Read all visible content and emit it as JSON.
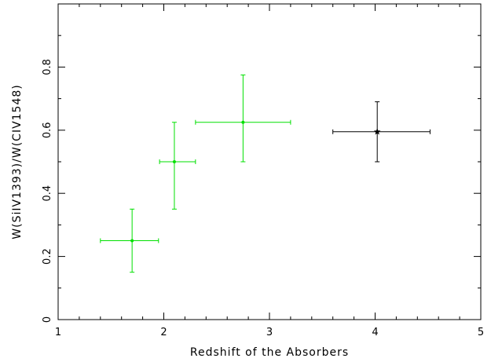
{
  "chart_data": {
    "type": "scatter",
    "xlabel": "Redshift of the Absorbers",
    "ylabel": "W(SiIV1393)/W(CIV1548)",
    "xlim": [
      1,
      5
    ],
    "ylim": [
      0,
      1.0
    ],
    "x_ticks": [
      1,
      2,
      3,
      4,
      5
    ],
    "y_ticks": [
      0,
      0.2,
      0.4,
      0.6,
      0.8
    ],
    "x_tick_labels": [
      "1",
      "2",
      "3",
      "4",
      "5"
    ],
    "y_tick_labels": [
      "0",
      "0.2",
      "0.4",
      "0.6",
      "0.8"
    ],
    "grid": false,
    "series": [
      {
        "color": "#00e000",
        "marker": "dot",
        "points": [
          {
            "x": 1.7,
            "y": 0.25,
            "xerr": [
              1.4,
              1.95
            ],
            "yerr": [
              0.15,
              0.35
            ]
          },
          {
            "x": 2.1,
            "y": 0.5,
            "xerr": [
              1.96,
              2.3
            ],
            "yerr": [
              0.35,
              0.625
            ]
          },
          {
            "x": 2.75,
            "y": 0.625,
            "xerr": [
              2.3,
              3.2
            ],
            "yerr": [
              0.5,
              0.775
            ]
          }
        ]
      },
      {
        "color": "#000000",
        "marker": "star",
        "points": [
          {
            "x": 4.02,
            "y": 0.595,
            "xerr": [
              3.6,
              4.52
            ],
            "yerr": [
              0.5,
              0.69
            ]
          }
        ]
      }
    ]
  }
}
